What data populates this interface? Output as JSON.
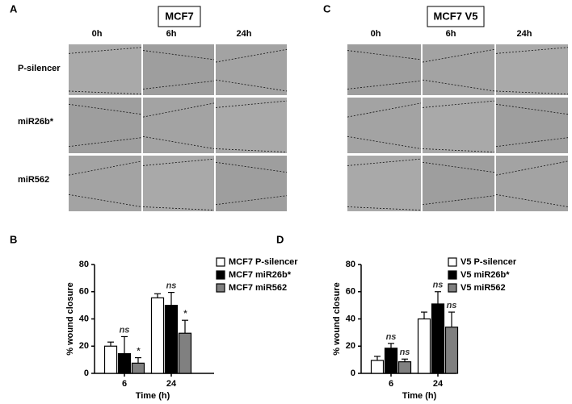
{
  "panels": [
    {
      "letter": "A",
      "title": "MCF7",
      "columns": [
        "0h",
        "6h",
        "24h"
      ],
      "rows": [
        "P-silencer",
        "miR26b*",
        "miR562"
      ]
    },
    {
      "letter": "C",
      "title": "MCF7 V5",
      "columns": [
        "0h",
        "6h",
        "24h"
      ]
    }
  ],
  "chart_data": [
    {
      "type": "bar",
      "panel": "B",
      "xlabel": "Time (h)",
      "ylabel": "% wound closure",
      "categories": [
        "6",
        "24"
      ],
      "ylim": [
        0,
        80
      ],
      "yticks": [
        0,
        20,
        40,
        60,
        80
      ],
      "series": [
        {
          "name": "MCF7 P-silencer",
          "color": "#ffffff",
          "values": [
            20,
            55.5
          ],
          "errors": [
            3,
            3
          ]
        },
        {
          "name": "MCF7 miR26b*",
          "color": "#000000",
          "values": [
            14.5,
            50
          ],
          "errors": [
            12.5,
            9.5
          ],
          "annotations": [
            "ns",
            "ns"
          ]
        },
        {
          "name": "MCF7 miR562",
          "color": "#808080",
          "values": [
            7.5,
            29.5
          ],
          "errors": [
            4,
            9.5
          ],
          "annotations": [
            "*",
            "*"
          ]
        }
      ]
    },
    {
      "type": "bar",
      "panel": "D",
      "xlabel": "Time (h)",
      "ylabel": "% wound closure",
      "categories": [
        "6",
        "24"
      ],
      "ylim": [
        0,
        80
      ],
      "yticks": [
        0,
        20,
        40,
        60,
        80
      ],
      "series": [
        {
          "name": "V5 P-silencer",
          "color": "#ffffff",
          "values": [
            9.5,
            40
          ],
          "errors": [
            3,
            5
          ]
        },
        {
          "name": "V5 miR26b*",
          "color": "#000000",
          "values": [
            18.5,
            51
          ],
          "errors": [
            3.5,
            9
          ],
          "annotations": [
            "ns",
            "ns"
          ]
        },
        {
          "name": "V5 miR562",
          "color": "#808080",
          "values": [
            8.5,
            34
          ],
          "errors": [
            2,
            11
          ],
          "annotations": [
            "ns",
            "ns"
          ]
        }
      ]
    }
  ]
}
